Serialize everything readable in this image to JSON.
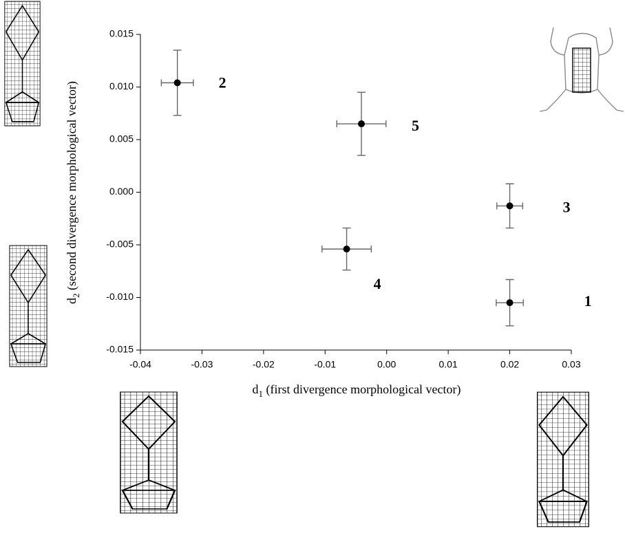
{
  "chart_data": {
    "type": "scatter",
    "xlabel": {
      "symbol": "d",
      "subscript": "1",
      "text": "(first divergence morphological vector)"
    },
    "ylabel": {
      "symbol": "d",
      "subscript": "2",
      "text": "(second divergence morphological vector)"
    },
    "x": [
      0.02,
      -0.034,
      0.02,
      -0.0065,
      -0.0041
    ],
    "values": [
      -0.0105,
      0.0104,
      -0.0013,
      -0.0054,
      0.0065
    ],
    "xerr": [
      0.0022,
      0.0026,
      0.0021,
      0.004,
      0.004
    ],
    "yerr": [
      0.0022,
      0.0031,
      0.0021,
      0.002,
      0.003
    ],
    "point_labels": [
      "1",
      "2",
      "3",
      "4",
      "5"
    ],
    "color": "#000000",
    "errorbar_color": "#666666",
    "xlim": [
      -0.04,
      0.03
    ],
    "xticks": [
      -0.04,
      -0.03,
      -0.02,
      -0.01,
      {
        "value": 0,
        "label": "0.00"
      },
      0.01,
      0.02,
      0.03
    ],
    "ylim": [
      -0.015,
      0.015
    ],
    "yticks": [
      -0.015,
      {
        "value": -0.01,
        "label": "-0.010"
      },
      -0.005,
      {
        "value": 0,
        "label": "0.000"
      },
      0.005,
      {
        "value": 0.01,
        "label": "0.010"
      },
      0.015
    ],
    "grid": false
  }
}
